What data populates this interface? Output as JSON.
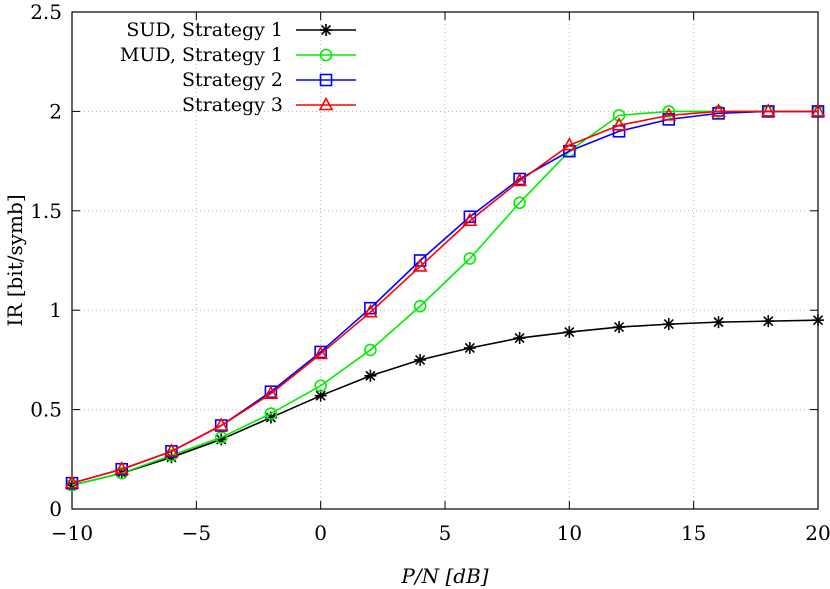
{
  "chart_data": {
    "type": "line",
    "xlabel": "P/N [dB]",
    "ylabel": "IR [bit/symb]",
    "xlim": [
      -10,
      20
    ],
    "ylim": [
      0,
      2.5
    ],
    "x_ticks": [
      -10,
      -5,
      0,
      5,
      10,
      15,
      20
    ],
    "x_tick_labels": [
      "−10",
      "−5",
      "0",
      "5",
      "10",
      "15",
      "20"
    ],
    "y_ticks": [
      0,
      0.5,
      1,
      1.5,
      2,
      2.5
    ],
    "y_tick_labels": [
      "0",
      "0.5",
      "1",
      "1.5",
      "2",
      "2.5"
    ],
    "grid": true,
    "legend_position": "top-left",
    "x": [
      -10,
      -8,
      -6,
      -4,
      -2,
      0,
      2,
      4,
      6,
      8,
      10,
      12,
      14,
      16,
      18,
      20
    ],
    "series": [
      {
        "name": "SUD, Strategy 1",
        "color": "#000000",
        "marker": "asterisk",
        "values": [
          0.12,
          0.18,
          0.26,
          0.35,
          0.46,
          0.57,
          0.67,
          0.75,
          0.81,
          0.86,
          0.89,
          0.915,
          0.93,
          0.94,
          0.945,
          0.95
        ]
      },
      {
        "name": "MUD, Strategy 1",
        "color": "#00ee00",
        "marker": "circle",
        "values": [
          0.12,
          0.18,
          0.27,
          0.36,
          0.48,
          0.62,
          0.8,
          1.02,
          1.26,
          1.54,
          1.8,
          1.98,
          2.0,
          2.0,
          2.0,
          2.0
        ]
      },
      {
        "name": "Strategy 2",
        "color": "#0000ff",
        "marker": "square",
        "values": [
          0.13,
          0.2,
          0.29,
          0.42,
          0.59,
          0.79,
          1.01,
          1.25,
          1.47,
          1.66,
          1.8,
          1.9,
          1.96,
          1.99,
          2.0,
          2.0
        ]
      },
      {
        "name": "Strategy 3",
        "color": "#ff0000",
        "marker": "triangle",
        "values": [
          0.13,
          0.2,
          0.29,
          0.42,
          0.58,
          0.78,
          0.99,
          1.22,
          1.45,
          1.65,
          1.83,
          1.93,
          1.98,
          2.0,
          2.0,
          2.0
        ]
      }
    ]
  }
}
